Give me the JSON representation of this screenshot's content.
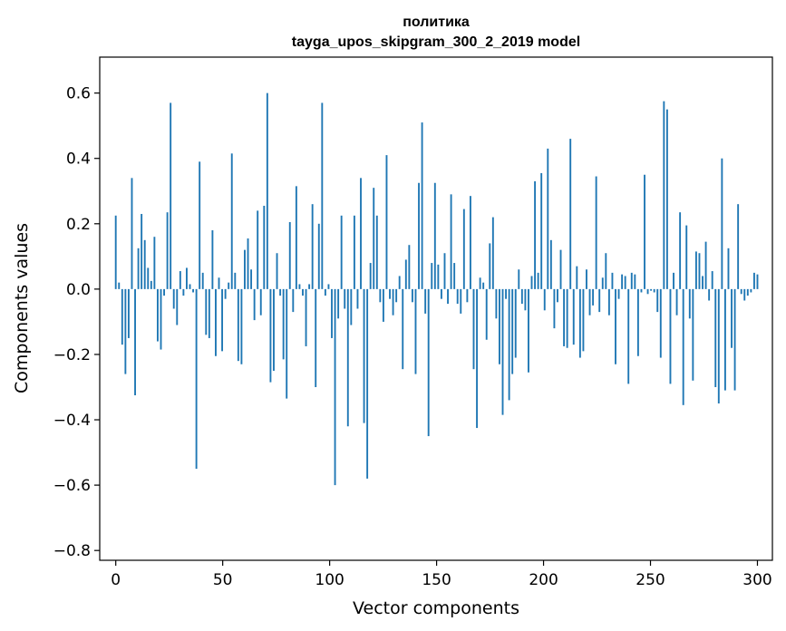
{
  "chart_data": {
    "type": "bar",
    "title": "политика",
    "subtitle": "tayga_upos_skipgram_300_2_2019 model",
    "xlabel": "Vector components",
    "ylabel": "Components values",
    "xlim": [
      -7.5,
      307
    ],
    "ylim": [
      -0.83,
      0.71
    ],
    "x_ticks": [
      {
        "value": 0,
        "label": "0"
      },
      {
        "value": 50,
        "label": "50"
      },
      {
        "value": 100,
        "label": "100"
      },
      {
        "value": 150,
        "label": "150"
      },
      {
        "value": 200,
        "label": "200"
      },
      {
        "value": 250,
        "label": "250"
      },
      {
        "value": 300,
        "label": "300"
      }
    ],
    "y_ticks": [
      {
        "value": -0.8,
        "label": "−0.8"
      },
      {
        "value": -0.6,
        "label": "−0.6"
      },
      {
        "value": -0.4,
        "label": "−0.4"
      },
      {
        "value": -0.2,
        "label": "−0.2"
      },
      {
        "value": 0.0,
        "label": "0.0"
      },
      {
        "value": 0.2,
        "label": "0.2"
      },
      {
        "value": 0.4,
        "label": "0.4"
      },
      {
        "value": 0.6,
        "label": "0.6"
      }
    ],
    "bar_color": "#1f77b4",
    "grid": false,
    "values": [
      0.225,
      0.02,
      -0.17,
      -0.26,
      -0.15,
      0.34,
      -0.325,
      0.125,
      0.23,
      0.15,
      0.065,
      0.025,
      0.16,
      -0.16,
      -0.185,
      -0.02,
      0.235,
      0.57,
      -0.06,
      -0.11,
      0.055,
      -0.02,
      0.065,
      0.015,
      -0.01,
      -0.55,
      0.39,
      0.05,
      -0.14,
      -0.15,
      0.18,
      -0.205,
      0.035,
      -0.19,
      -0.03,
      0.02,
      0.415,
      0.05,
      -0.22,
      -0.23,
      0.12,
      0.155,
      0.06,
      -0.095,
      0.24,
      -0.08,
      0.255,
      0.6,
      -0.285,
      -0.25,
      0.11,
      -0.02,
      -0.215,
      -0.335,
      0.205,
      -0.07,
      0.315,
      0.015,
      -0.02,
      -0.175,
      0.015,
      0.26,
      -0.3,
      0.2,
      0.57,
      -0.02,
      0.015,
      -0.15,
      -0.6,
      -0.09,
      0.225,
      -0.06,
      -0.42,
      -0.11,
      0.225,
      -0.06,
      0.34,
      -0.41,
      -0.58,
      0.08,
      0.31,
      0.225,
      -0.04,
      -0.1,
      0.41,
      -0.03,
      -0.08,
      -0.04,
      0.04,
      -0.245,
      0.09,
      0.135,
      -0.04,
      -0.26,
      0.325,
      0.51,
      -0.075,
      -0.45,
      0.08,
      0.325,
      0.075,
      -0.03,
      0.11,
      -0.045,
      0.29,
      0.08,
      -0.045,
      -0.075,
      0.245,
      -0.04,
      0.285,
      -0.245,
      -0.425,
      0.035,
      0.02,
      -0.155,
      0.14,
      0.22,
      -0.09,
      -0.23,
      -0.385,
      -0.03,
      -0.34,
      -0.26,
      -0.21,
      0.06,
      -0.045,
      -0.065,
      -0.255,
      0.04,
      0.33,
      0.05,
      0.355,
      -0.065,
      0.43,
      0.15,
      -0.12,
      -0.04,
      0.12,
      -0.175,
      -0.18,
      0.46,
      -0.17,
      0.07,
      -0.21,
      -0.19,
      0.06,
      -0.08,
      -0.05,
      0.345,
      -0.07,
      0.035,
      0.11,
      -0.08,
      0.05,
      -0.23,
      -0.03,
      0.045,
      0.04,
      -0.29,
      0.05,
      0.045,
      -0.205,
      -0.01,
      0.35,
      -0.015,
      -0.005,
      -0.01,
      -0.07,
      -0.21,
      0.575,
      0.55,
      -0.29,
      0.05,
      -0.08,
      0.235,
      -0.355,
      0.195,
      -0.09,
      -0.28,
      0.115,
      0.11,
      0.04,
      0.145,
      -0.035,
      0.055,
      -0.3,
      -0.35,
      0.4,
      -0.31,
      0.125,
      -0.18,
      -0.31,
      0.26,
      -0.015,
      -0.035,
      -0.02,
      -0.01,
      0.05,
      0.045
    ]
  }
}
